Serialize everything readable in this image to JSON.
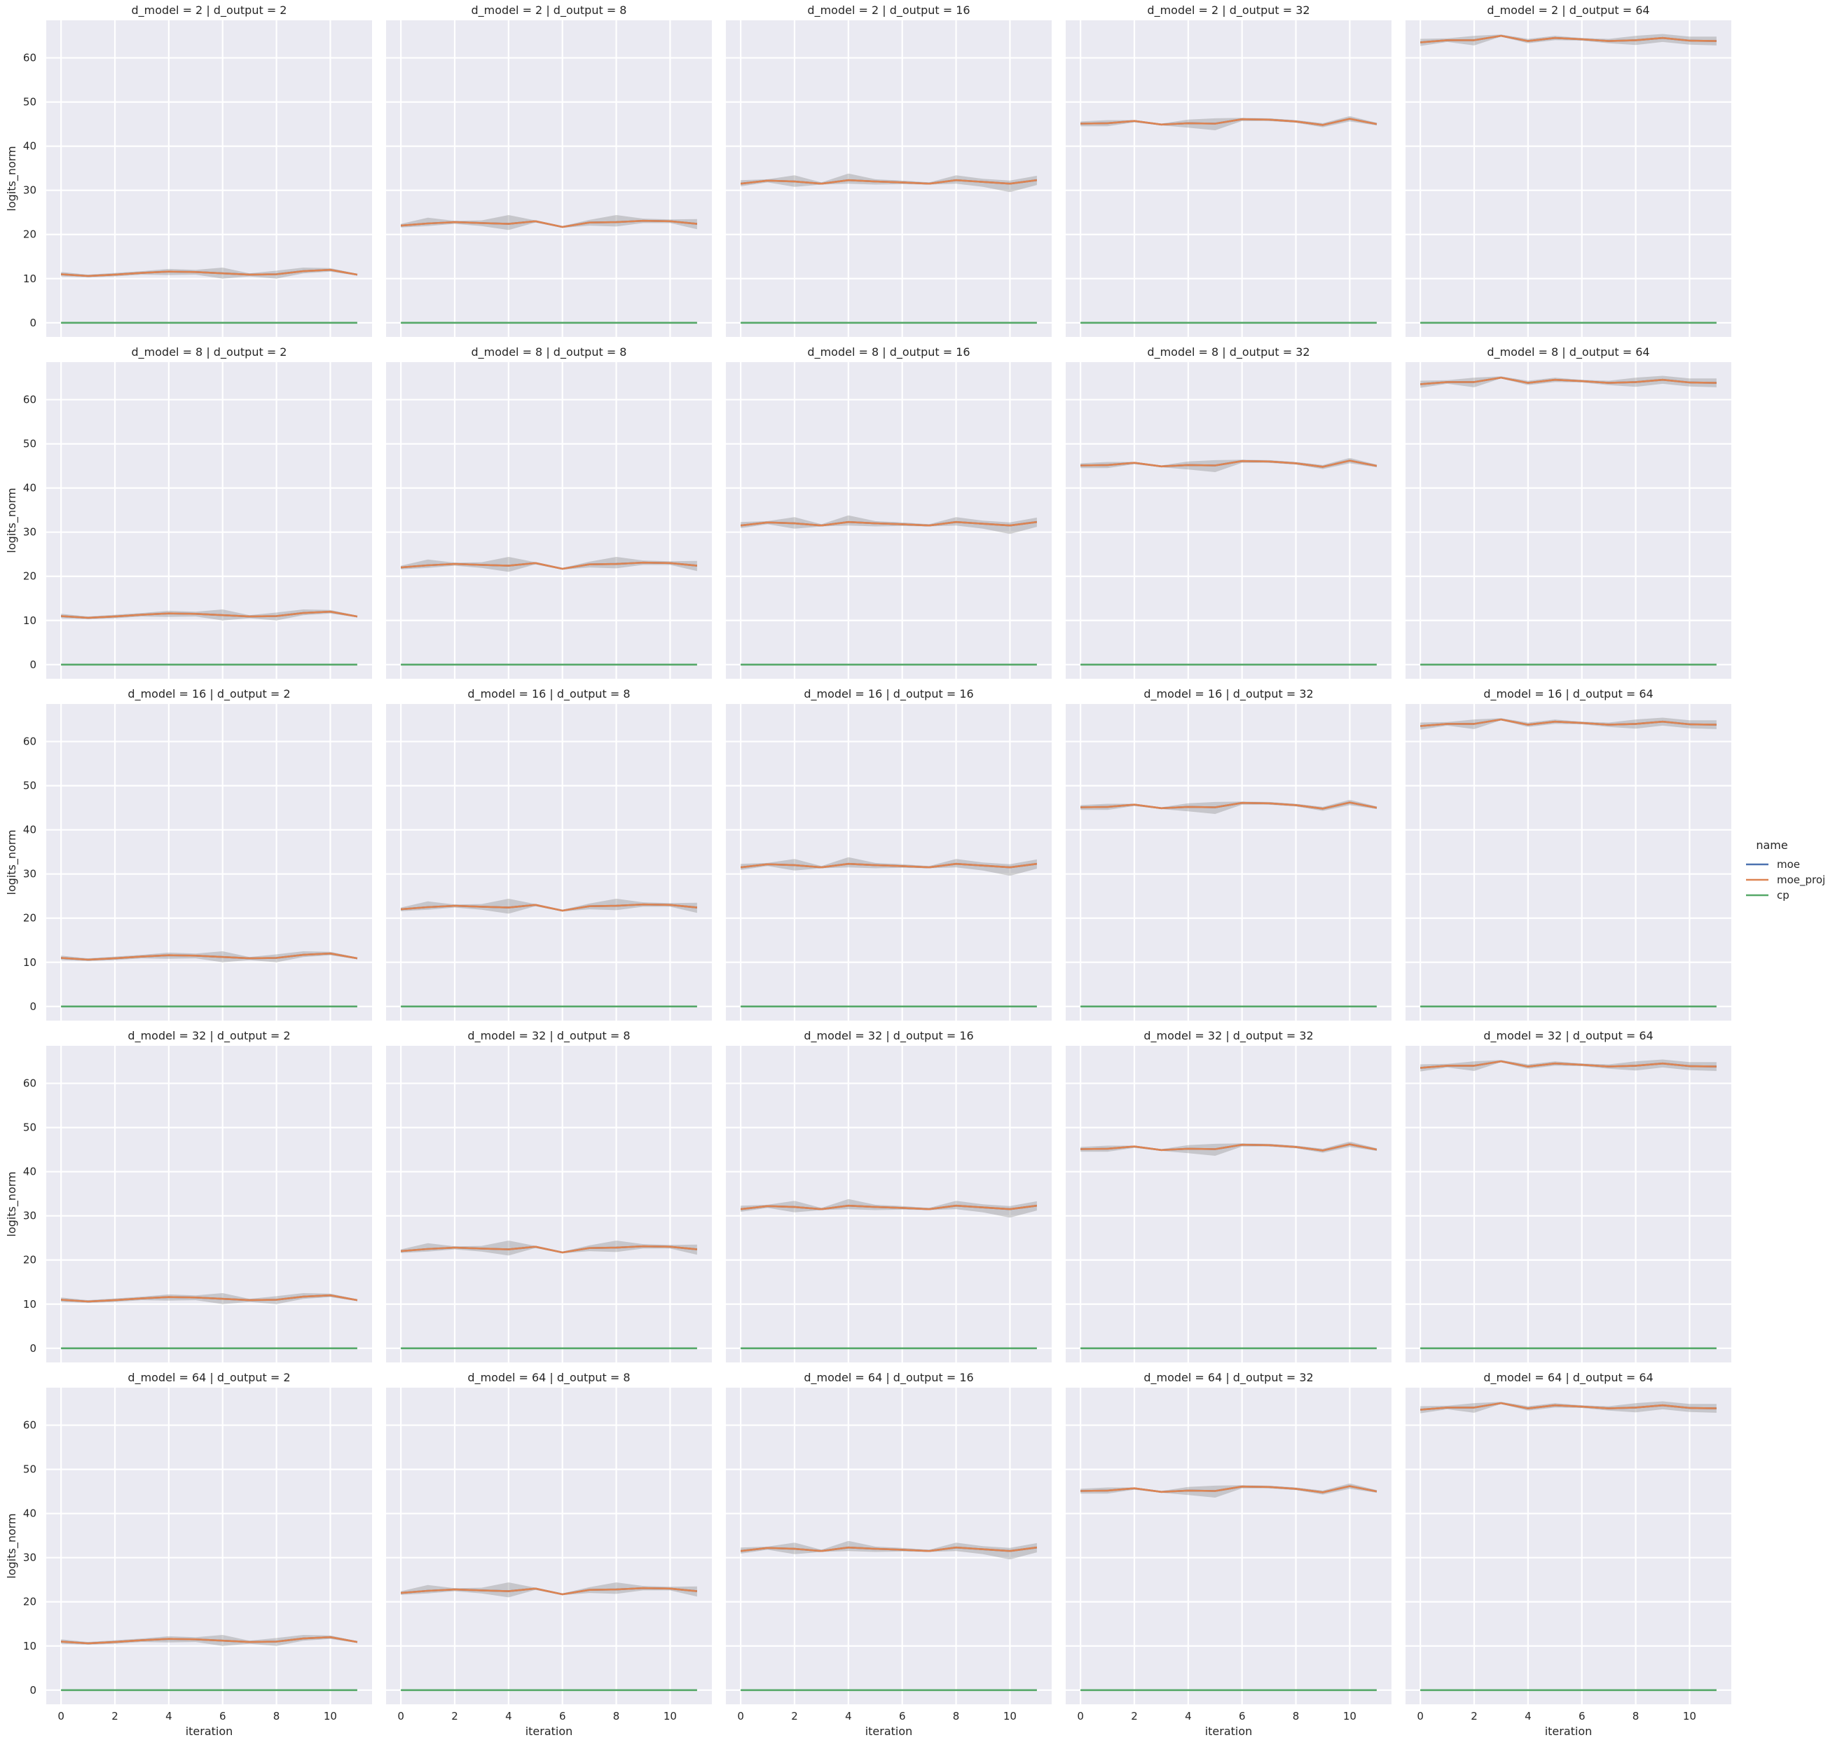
{
  "chart_data": {
    "type": "line",
    "layout": "facet-grid",
    "row_var": "d_model",
    "col_var": "d_output",
    "row_values": [
      2,
      8,
      16,
      32,
      64
    ],
    "col_values": [
      2,
      8,
      16,
      32,
      64
    ],
    "panel_titles": [
      [
        "d_model = 2 | d_output = 2",
        "d_model = 2 | d_output = 8",
        "d_model = 2 | d_output = 16",
        "d_model = 2 | d_output = 32",
        "d_model = 2 | d_output = 64"
      ],
      [
        "d_model = 8 | d_output = 2",
        "d_model = 8 | d_output = 8",
        "d_model = 8 | d_output = 16",
        "d_model = 8 | d_output = 32",
        "d_model = 8 | d_output = 64"
      ],
      [
        "d_model = 16 | d_output = 2",
        "d_model = 16 | d_output = 8",
        "d_model = 16 | d_output = 16",
        "d_model = 16 | d_output = 32",
        "d_model = 16 | d_output = 64"
      ],
      [
        "d_model = 32 | d_output = 2",
        "d_model = 32 | d_output = 8",
        "d_model = 32 | d_output = 16",
        "d_model = 32 | d_output = 32",
        "d_model = 32 | d_output = 64"
      ],
      [
        "d_model = 64 | d_output = 2",
        "d_model = 64 | d_output = 8",
        "d_model = 64 | d_output = 16",
        "d_model = 64 | d_output = 32",
        "d_model = 64 | d_output = 64"
      ]
    ],
    "xlabel": "iteration",
    "ylabel": "logits_norm",
    "x": [
      0,
      1,
      2,
      3,
      4,
      5,
      6,
      7,
      8,
      9,
      10,
      11
    ],
    "xlim": [
      -0.55,
      11.55
    ],
    "ylim": [
      -3.2,
      68.5
    ],
    "x_ticks": [
      0,
      2,
      4,
      6,
      8,
      10
    ],
    "y_ticks": [
      0,
      10,
      20,
      30,
      40,
      50,
      60
    ],
    "grid": true,
    "legend": {
      "title": "name",
      "placement": "outside-right",
      "entries": [
        {
          "name": "moe",
          "color": "#4c72b0"
        },
        {
          "name": "moe_proj",
          "color": "#dd8452"
        },
        {
          "name": "cp",
          "color": "#55a868"
        }
      ]
    },
    "band_color": "#8c8c8c",
    "series_by_d_output": {
      "2": {
        "moe": [
          11.0,
          10.6,
          10.9,
          11.3,
          11.6,
          11.5,
          11.2,
          10.9,
          11.0,
          11.7,
          12.0,
          10.9
        ],
        "moe_proj": [
          11.0,
          10.6,
          10.9,
          11.3,
          11.6,
          11.5,
          11.2,
          10.9,
          11.0,
          11.7,
          12.0,
          10.9
        ],
        "band_lo": [
          10.5,
          10.3,
          10.5,
          10.9,
          10.8,
          10.9,
          10.0,
          10.5,
          10.0,
          11.2,
          11.6,
          10.7
        ],
        "band_hi": [
          11.5,
          10.9,
          11.3,
          11.7,
          12.2,
          12.0,
          12.5,
          11.2,
          11.8,
          12.5,
          12.4,
          11.1
        ],
        "cp": [
          0,
          0,
          0,
          0,
          0,
          0,
          0,
          0,
          0,
          0,
          0,
          0
        ]
      },
      "8": {
        "moe": [
          22.0,
          22.5,
          22.8,
          22.6,
          22.4,
          23.0,
          21.7,
          22.7,
          22.8,
          23.1,
          23.0,
          22.4
        ],
        "moe_proj": [
          22.0,
          22.5,
          22.8,
          22.6,
          22.4,
          23.0,
          21.7,
          22.7,
          22.8,
          23.1,
          23.0,
          22.4
        ],
        "band_lo": [
          21.6,
          21.9,
          22.4,
          21.9,
          21.0,
          22.7,
          21.5,
          22.0,
          21.8,
          22.6,
          22.6,
          21.2
        ],
        "band_hi": [
          22.4,
          23.8,
          23.1,
          23.2,
          24.4,
          23.2,
          21.9,
          23.3,
          24.4,
          23.6,
          23.4,
          23.5
        ],
        "cp": [
          0,
          0,
          0,
          0,
          0,
          0,
          0,
          0,
          0,
          0,
          0,
          0
        ]
      },
      "16": {
        "moe": [
          31.5,
          32.2,
          32.0,
          31.5,
          32.3,
          32.0,
          31.8,
          31.5,
          32.3,
          31.9,
          31.5,
          32.3
        ],
        "moe_proj": [
          31.5,
          32.2,
          32.0,
          31.5,
          32.3,
          32.0,
          31.8,
          31.5,
          32.3,
          31.9,
          31.5,
          32.3
        ],
        "band_lo": [
          30.9,
          31.8,
          30.8,
          31.3,
          31.5,
          31.3,
          31.4,
          31.3,
          31.5,
          30.8,
          29.6,
          31.2
        ],
        "band_hi": [
          32.3,
          32.5,
          33.4,
          31.8,
          33.8,
          32.5,
          32.2,
          31.8,
          33.4,
          32.6,
          32.2,
          33.3
        ],
        "cp": [
          0,
          0,
          0,
          0,
          0,
          0,
          0,
          0,
          0,
          0,
          0,
          0
        ]
      },
      "32": {
        "moe": [
          45.1,
          45.2,
          45.7,
          44.9,
          45.2,
          45.1,
          46.1,
          46.0,
          45.6,
          44.8,
          46.2,
          45.0
        ],
        "moe_proj": [
          45.1,
          45.2,
          45.7,
          44.9,
          45.2,
          45.1,
          46.1,
          46.0,
          45.6,
          44.8,
          46.2,
          45.0
        ],
        "band_lo": [
          44.5,
          44.5,
          45.4,
          44.7,
          44.2,
          43.6,
          45.7,
          45.7,
          45.3,
          44.3,
          45.6,
          44.7
        ],
        "band_hi": [
          45.6,
          45.9,
          45.9,
          45.1,
          46.0,
          46.3,
          46.4,
          46.3,
          45.9,
          45.2,
          46.8,
          45.3
        ],
        "cp": [
          0,
          0,
          0,
          0,
          0,
          0,
          0,
          0,
          0,
          0,
          0,
          0
        ]
      },
      "64": {
        "moe": [
          63.5,
          64.0,
          64.0,
          65.0,
          63.8,
          64.5,
          64.2,
          63.8,
          64.0,
          64.5,
          63.9,
          63.8
        ],
        "moe_proj": [
          63.5,
          64.0,
          64.0,
          65.0,
          63.8,
          64.5,
          64.2,
          63.8,
          64.0,
          64.5,
          63.9,
          63.8
        ],
        "band_lo": [
          62.7,
          63.6,
          62.8,
          64.8,
          63.3,
          64.0,
          63.9,
          63.3,
          62.9,
          63.6,
          63.0,
          62.8
        ],
        "band_hi": [
          64.3,
          64.4,
          65.0,
          65.3,
          64.3,
          65.0,
          64.5,
          64.3,
          65.0,
          65.4,
          64.8,
          64.8
        ],
        "cp": [
          0,
          0,
          0,
          0,
          0,
          0,
          0,
          0,
          0,
          0,
          0,
          0
        ]
      }
    }
  }
}
